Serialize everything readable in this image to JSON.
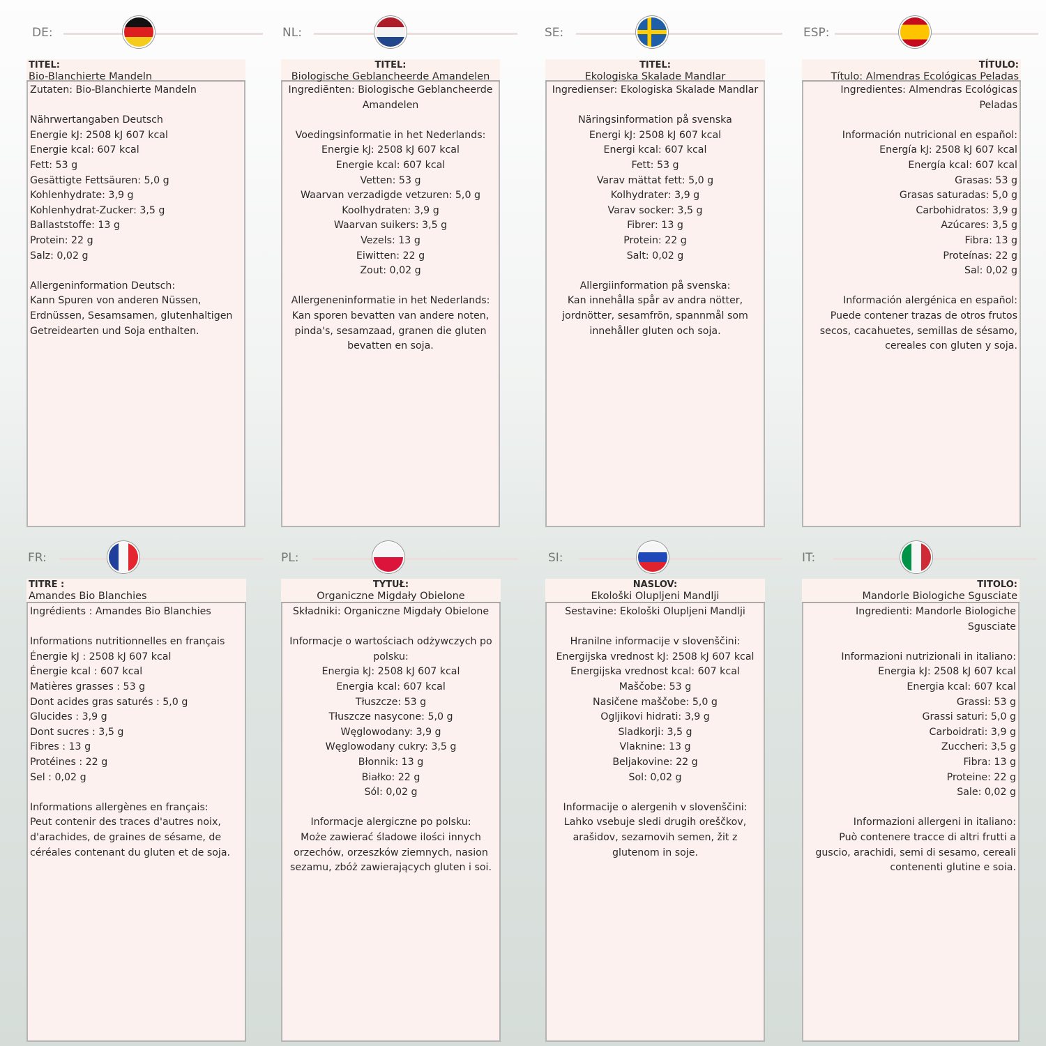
{
  "panels": [
    {
      "code": "DE:",
      "flag": "germany",
      "align": "left",
      "title_label": "TITEL:",
      "title": "Bio-Blanchierte Mandeln",
      "lines": [
        "Zutaten: Bio-Blanchierte Mandeln",
        "",
        "Nährwertangaben Deutsch",
        "Energie kJ: 2508 kJ 607 kcal",
        "Energie kcal: 607 kcal",
        "Fett: 53 g",
        "Gesättigte Fettsäuren: 5,0 g",
        "Kohlenhydrate: 3,9 g",
        "Kohlenhydrat-Zucker: 3,5 g",
        "Ballaststoffe: 13 g",
        "Protein: 22 g",
        "Salz: 0,02 g",
        "",
        "Allergeninformation Deutsch:",
        "Kann Spuren von anderen Nüssen, Erdnüssen, Sesamsamen, glutenhaltigen Getreidearten und Soja enthalten."
      ]
    },
    {
      "code": "NL:",
      "flag": "netherlands",
      "align": "center",
      "title_label": "TITEL:",
      "title": "Biologische Geblancheerde Amandelen",
      "lines": [
        "Ingrediënten: Biologische Geblancheerde Amandelen",
        "",
        "Voedingsinformatie in het Nederlands:",
        "Energie kJ: 2508 kJ 607 kcal",
        "Energie kcal: 607 kcal",
        "Vetten: 53 g",
        "Waarvan verzadigde vetzuren: 5,0 g",
        "Koolhydraten: 3,9 g",
        "Waarvan suikers: 3,5 g",
        "Vezels: 13 g",
        "Eiwitten: 22 g",
        "Zout: 0,02 g",
        "",
        "Allergeneninformatie in het Nederlands:",
        "Kan sporen bevatten van andere noten, pinda's, sesamzaad, granen die gluten bevatten en soja."
      ]
    },
    {
      "code": "SE:",
      "flag": "sweden",
      "align": "center",
      "title_label": "TITEL:",
      "title": "Ekologiska Skalade Mandlar",
      "lines": [
        "Ingredienser: Ekologiska Skalade Mandlar",
        "",
        "Näringsinformation på svenska",
        "Energi kJ: 2508 kJ 607 kcal",
        "Energi kcal: 607 kcal",
        "Fett: 53 g",
        "Varav mättat fett: 5,0 g",
        "Kolhydrater: 3,9 g",
        "Varav socker: 3,5 g",
        "Fibrer: 13 g",
        "Protein: 22 g",
        "Salt: 0,02 g",
        "",
        "Allergiinformation på svenska:",
        "Kan innehålla spår av andra nötter, jordnötter, sesamfrön, spannmål som innehåller gluten och soja."
      ]
    },
    {
      "code": "ESP:",
      "flag": "spain",
      "align": "right",
      "title_label": "TÍTULO:",
      "title": "Título: Almendras Ecológicas Peladas",
      "lines": [
        "Ingredientes: Almendras Ecológicas Peladas",
        "",
        "Información nutricional en español:",
        "Energía kJ: 2508 kJ 607 kcal",
        "Energía kcal: 607 kcal",
        "Grasas: 53 g",
        "Grasas saturadas: 5,0 g",
        "Carbohidratos: 3,9 g",
        "Azúcares: 3,5 g",
        "Fibra: 13 g",
        "Proteínas: 22 g",
        "Sal: 0,02 g",
        "",
        "Información alergénica en español:",
        "Puede contener trazas de otros frutos secos, cacahuetes, semillas de sésamo, cereales con gluten y soja."
      ]
    },
    {
      "code": "FR:",
      "flag": "france",
      "align": "left",
      "title_label": "TITRE :",
      "title": "Amandes Bio Blanchies",
      "lines": [
        "Ingrédients : Amandes Bio Blanchies",
        "",
        "Informations nutritionnelles en français",
        "Énergie kJ : 2508 kJ 607 kcal",
        "Énergie kcal : 607 kcal",
        "Matières grasses : 53 g",
        "Dont acides gras saturés : 5,0 g",
        "Glucides : 3,9 g",
        "Dont sucres : 3,5 g",
        "Fibres : 13 g",
        "Protéines : 22 g",
        "Sel : 0,02 g",
        "",
        "Informations allergènes en français:",
        "Peut contenir des traces d'autres noix, d'arachides, de graines de sésame, de céréales contenant du gluten et de soja."
      ]
    },
    {
      "code": "PL:",
      "flag": "poland",
      "align": "center",
      "title_label": "TYTUŁ:",
      "title": "Organiczne Migdały Obielone",
      "lines": [
        "Składniki: Organiczne Migdały Obielone",
        "",
        "Informacje o wartościach odżywczych po polsku:",
        "Energia kJ: 2508 kJ 607 kcal",
        "Energia kcal: 607 kcal",
        "Tłuszcze: 53 g",
        "Tłuszcze nasycone: 5,0 g",
        "Węglowodany: 3,9 g",
        "Węglowodany cukry: 3,5 g",
        "Błonnik: 13 g",
        "Białko: 22 g",
        "Sól: 0,02 g",
        "",
        "Informacje alergiczne po polsku:",
        "Może zawierać śladowe ilości innych orzechów, orzeszków ziemnych, nasion sezamu, zbóż zawierających gluten i soi."
      ]
    },
    {
      "code": "SI:",
      "flag": "slovenia",
      "align": "center",
      "title_label": "NASLOV:",
      "title": "Ekološki Olupljeni Mandlji",
      "lines": [
        "Sestavine: Ekološki Olupljeni Mandlji",
        "",
        "Hranilne informacije v slovenščini:",
        "Energijska vrednost kJ: 2508 kJ 607 kcal",
        "Energijska vrednost kcal: 607 kcal",
        "Maščobe: 53 g",
        "Nasičene maščobe: 5,0 g",
        "Ogljikovi hidrati: 3,9 g",
        "Sladkorji: 3,5 g",
        "Vlaknine: 13 g",
        "Beljakovine: 22 g",
        "Sol: 0,02 g",
        "",
        "Informacije o alergenih v slovenščini:",
        "Lahko vsebuje sledi drugih oreščkov, arašidov, sezamovih semen, žit z glutenom in soje."
      ]
    },
    {
      "code": "IT:",
      "flag": "italy",
      "align": "right",
      "title_label": "TITOLO:",
      "title": "Mandorle Biologiche Sgusciate",
      "lines": [
        "Ingredienti: Mandorle Biologiche Sgusciate",
        "",
        "Informazioni nutrizionali in italiano:",
        "Energia kJ: 2508 kJ 607 kcal",
        "Energia kcal: 607 kcal",
        "Grassi: 53 g",
        "Grassi saturi: 5,0 g",
        "Carboidrati: 3,9 g",
        "Zuccheri: 3,5 g",
        "Fibra: 13 g",
        "Proteine: 22 g",
        "Sale: 0,02 g",
        "",
        "Informazioni allergeni in italiano:",
        "Può contenere tracce di altri frutti a guscio, arachidi, semi di sesamo, cereali contenenti glutine e soia."
      ]
    }
  ]
}
